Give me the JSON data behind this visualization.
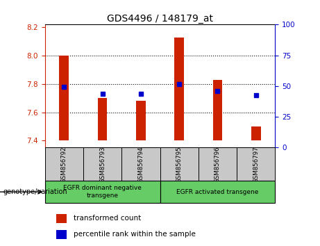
{
  "title": "GDS4496 / 148179_at",
  "samples": [
    "GSM856792",
    "GSM856793",
    "GSM856794",
    "GSM856795",
    "GSM856796",
    "GSM856797"
  ],
  "bar_values": [
    8.0,
    7.7,
    7.68,
    8.13,
    7.83,
    7.5
  ],
  "bar_bottom": 7.4,
  "blue_values": [
    7.78,
    7.73,
    7.73,
    7.8,
    7.75,
    7.72
  ],
  "ylim_left": [
    7.35,
    8.22
  ],
  "ylim_right": [
    0,
    100
  ],
  "yticks_left": [
    7.4,
    7.6,
    7.8,
    8.0,
    8.2
  ],
  "yticks_right": [
    0,
    25,
    50,
    75,
    100
  ],
  "bar_color": "#cc2200",
  "blue_color": "#0000cc",
  "grid_values": [
    8.0,
    7.8,
    7.6
  ],
  "group1_label": "EGFR dominant negative\ntransgene",
  "group2_label": "EGFR activated transgene",
  "group_bg_color": "#66cc66",
  "sample_bg_color": "#c8c8c8",
  "legend_red_label": "transformed count",
  "legend_blue_label": "percentile rank within the sample",
  "genotype_label": "genotype/variation",
  "bar_width": 0.25,
  "title_fontsize": 10,
  "tick_fontsize": 7.5,
  "label_fontsize": 7.5
}
